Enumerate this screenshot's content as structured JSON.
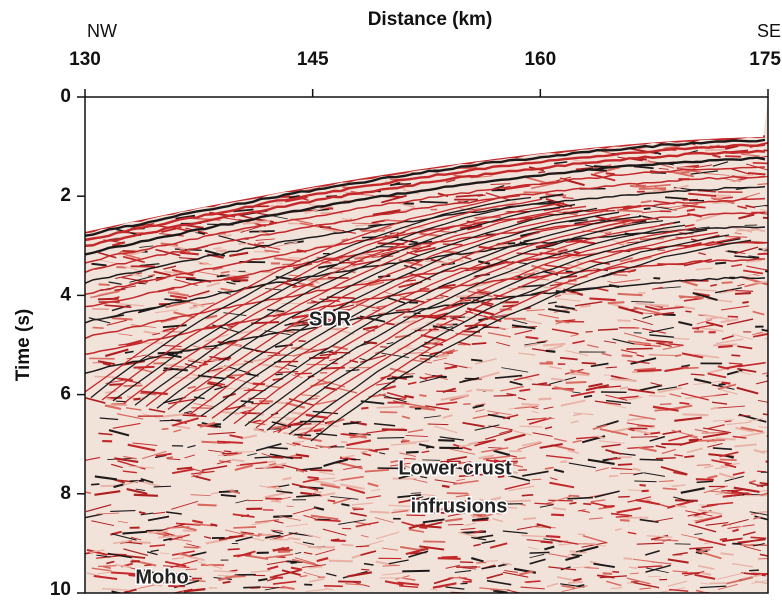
{
  "chart_data": {
    "type": "seismic-section",
    "x_label": "Distance (km)",
    "y_label": "Time (s)",
    "xlim": [
      130,
      175
    ],
    "xticks": [
      130,
      145,
      160,
      175
    ],
    "ylim": [
      0,
      10
    ],
    "yticks": [
      0,
      2,
      4,
      6,
      8,
      10
    ],
    "y_inverted": true,
    "annotations": [
      "NW",
      "SE",
      "SDR",
      "Lower crust",
      "infrusions",
      "Moho"
    ]
  }
}
